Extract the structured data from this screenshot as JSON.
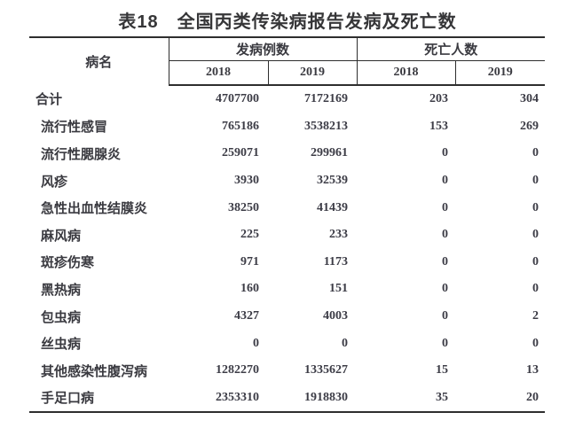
{
  "title": "表18　全国丙类传染病报告发病及死亡数",
  "colors": {
    "background": "#ffffff",
    "text": "#3a3a40",
    "number_text": "#3c3c46",
    "line": "#2e2e2e"
  },
  "table": {
    "col_disease": "病名",
    "group_cases": "发病例数",
    "group_deaths": "死亡人数",
    "year_cases_2018": "2018",
    "year_cases_2019": "2019",
    "year_deaths_2018": "2018",
    "year_deaths_2019": "2019",
    "rows": [
      {
        "name": "合计",
        "c18": "4707700",
        "c19": "7172169",
        "d18": "203",
        "d19": "304"
      },
      {
        "name": "流行性感冒",
        "c18": "765186",
        "c19": "3538213",
        "d18": "153",
        "d19": "269"
      },
      {
        "name": "流行性腮腺炎",
        "c18": "259071",
        "c19": "299961",
        "d18": "0",
        "d19": "0"
      },
      {
        "name": "风疹",
        "c18": "3930",
        "c19": "32539",
        "d18": "0",
        "d19": "0"
      },
      {
        "name": "急性出血性结膜炎",
        "c18": "38250",
        "c19": "41439",
        "d18": "0",
        "d19": "0"
      },
      {
        "name": "麻风病",
        "c18": "225",
        "c19": "233",
        "d18": "0",
        "d19": "0"
      },
      {
        "name": "斑疹伤寒",
        "c18": "971",
        "c19": "1173",
        "d18": "0",
        "d19": "0"
      },
      {
        "name": "黑热病",
        "c18": "160",
        "c19": "151",
        "d18": "0",
        "d19": "0"
      },
      {
        "name": "包虫病",
        "c18": "4327",
        "c19": "4003",
        "d18": "0",
        "d19": "2"
      },
      {
        "name": "丝虫病",
        "c18": "0",
        "c19": "0",
        "d18": "0",
        "d19": "0"
      },
      {
        "name": "其他感染性腹泻病",
        "c18": "1282270",
        "c19": "1335627",
        "d18": "15",
        "d19": "13"
      },
      {
        "name": "手足口病",
        "c18": "2353310",
        "c19": "1918830",
        "d18": "35",
        "d19": "20"
      }
    ]
  }
}
